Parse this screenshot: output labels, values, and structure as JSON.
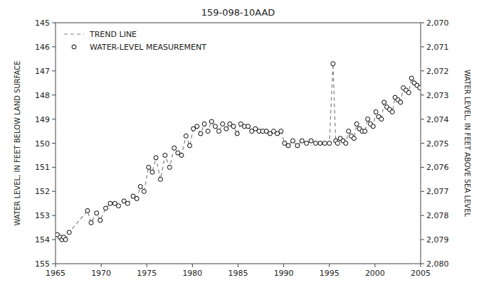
{
  "chart_data": {
    "type": "line",
    "title": "159-098-10AAD",
    "ylabel": "WATER LEVEL, IN FEET BELOW LAND SURFACE",
    "y2label": "WATER LEVEL, IN FEET ABOVE SEA LEVEL",
    "xlim": [
      1965,
      2005
    ],
    "xticks": [
      1965,
      1970,
      1975,
      1980,
      1985,
      1990,
      1995,
      2000,
      2005
    ],
    "ylim": [
      155,
      145
    ],
    "yticks": [
      145,
      146,
      147,
      148,
      149,
      150,
      151,
      152,
      153,
      154,
      155
    ],
    "y2lim": [
      2080,
      2070
    ],
    "y2ticks": [
      {
        "value": 2080,
        "label": "2,080"
      },
      {
        "value": 2079,
        "label": "2,079"
      },
      {
        "value": 2078,
        "label": "2,078"
      },
      {
        "value": 2077,
        "label": "2,077"
      },
      {
        "value": 2076,
        "label": "2,076"
      },
      {
        "value": 2075,
        "label": "2,075"
      },
      {
        "value": 2074,
        "label": "2,074"
      },
      {
        "value": 2073,
        "label": "2,073"
      },
      {
        "value": 2072,
        "label": "2,072"
      },
      {
        "value": 2071,
        "label": "2,071"
      },
      {
        "value": 2070,
        "label": "2,070"
      }
    ],
    "grid": false,
    "legend": "upper left",
    "x": [
      1965.2,
      1965.5,
      1965.7,
      1965.9,
      1966.1,
      1966.5,
      1968.5,
      1968.9,
      1969.5,
      1969.9,
      1970.5,
      1971.0,
      1971.5,
      1971.9,
      1972.5,
      1972.9,
      1973.5,
      1973.9,
      1974.3,
      1974.7,
      1975.2,
      1975.6,
      1976.0,
      1976.5,
      1977.0,
      1977.5,
      1978.0,
      1978.4,
      1978.8,
      1979.3,
      1979.7,
      1980.1,
      1980.5,
      1980.9,
      1981.3,
      1981.7,
      1982.1,
      1982.5,
      1982.9,
      1983.3,
      1983.7,
      1984.1,
      1984.5,
      1984.9,
      1985.3,
      1985.7,
      1986.1,
      1986.5,
      1986.9,
      1987.3,
      1987.7,
      1988.1,
      1988.5,
      1988.9,
      1989.3,
      1989.7,
      1990.1,
      1990.5,
      1991.0,
      1991.5,
      1992.0,
      1992.5,
      1993.0,
      1993.5,
      1994.0,
      1994.5,
      1995.0,
      1995.4,
      1995.7,
      1995.9,
      1996.2,
      1996.5,
      1996.8,
      1997.1,
      1997.4,
      1997.7,
      1998.0,
      1998.3,
      1998.6,
      1998.9,
      1999.2,
      1999.5,
      1999.8,
      2000.1,
      2000.4,
      2000.7,
      2001.0,
      2001.3,
      2001.6,
      2001.9,
      2002.2,
      2002.5,
      2002.8,
      2003.1,
      2003.4,
      2003.7,
      2004.0,
      2004.3,
      2004.6,
      2004.9
    ],
    "series": [
      {
        "name": "TREND LINE",
        "type": "line",
        "color": "gray",
        "line_style": "dashed",
        "values": [
          153.8,
          153.9,
          154.0,
          153.9,
          154.0,
          153.7,
          152.8,
          153.3,
          152.9,
          153.2,
          152.7,
          152.5,
          152.5,
          152.6,
          152.4,
          152.5,
          152.2,
          152.3,
          151.8,
          152.0,
          151.0,
          151.2,
          150.6,
          151.5,
          150.5,
          151.0,
          150.2,
          150.4,
          150.5,
          149.7,
          150.1,
          149.4,
          149.3,
          149.6,
          149.2,
          149.5,
          149.1,
          149.3,
          149.5,
          149.2,
          149.4,
          149.2,
          149.3,
          149.6,
          149.2,
          149.3,
          149.3,
          149.5,
          149.4,
          149.5,
          149.5,
          149.5,
          149.6,
          149.5,
          149.6,
          149.5,
          150.0,
          150.1,
          149.9,
          150.1,
          149.9,
          150.0,
          149.9,
          150.0,
          150.0,
          150.0,
          150.0,
          146.7,
          149.9,
          150.0,
          149.8,
          149.9,
          150.0,
          149.5,
          149.7,
          149.8,
          149.2,
          149.4,
          149.5,
          149.5,
          149.0,
          149.2,
          149.3,
          148.7,
          148.9,
          149.0,
          148.3,
          148.5,
          148.6,
          148.7,
          148.1,
          148.2,
          148.3,
          147.7,
          147.8,
          147.9,
          147.3,
          147.5,
          147.6,
          147.7
        ]
      },
      {
        "name": "WATER-LEVEL MEASUREMENT",
        "type": "scatter",
        "color": "black",
        "marker": "circle",
        "values": [
          153.8,
          153.9,
          154.0,
          153.9,
          154.0,
          153.7,
          152.8,
          153.3,
          152.9,
          153.2,
          152.7,
          152.5,
          152.5,
          152.6,
          152.4,
          152.5,
          152.2,
          152.3,
          151.8,
          152.0,
          151.0,
          151.2,
          150.6,
          151.5,
          150.5,
          151.0,
          150.2,
          150.4,
          150.5,
          149.7,
          150.1,
          149.4,
          149.3,
          149.6,
          149.2,
          149.5,
          149.1,
          149.3,
          149.5,
          149.2,
          149.4,
          149.2,
          149.3,
          149.6,
          149.2,
          149.3,
          149.3,
          149.5,
          149.4,
          149.5,
          149.5,
          149.5,
          149.6,
          149.5,
          149.6,
          149.5,
          150.0,
          150.1,
          149.9,
          150.1,
          149.9,
          150.0,
          149.9,
          150.0,
          150.0,
          150.0,
          150.0,
          146.7,
          149.9,
          150.0,
          149.8,
          149.9,
          150.0,
          149.5,
          149.7,
          149.8,
          149.2,
          149.4,
          149.5,
          149.5,
          149.0,
          149.2,
          149.3,
          148.7,
          148.9,
          149.0,
          148.3,
          148.5,
          148.6,
          148.7,
          148.1,
          148.2,
          148.3,
          147.7,
          147.8,
          147.9,
          147.3,
          147.5,
          147.6,
          147.7
        ]
      }
    ]
  }
}
